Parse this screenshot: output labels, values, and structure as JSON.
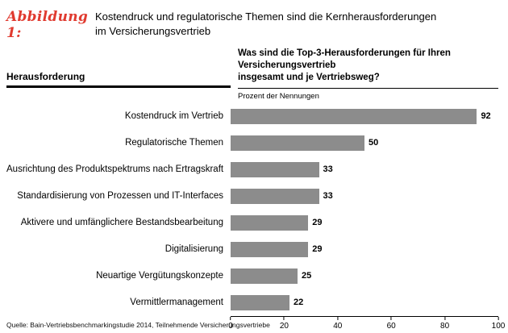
{
  "figure": {
    "label": "Abbildung 1:",
    "title_line1": "Kostendruck und regulatorische Themen sind die Kernherausforderungen",
    "title_line2": "im Versicherungsvertrieb"
  },
  "columns": {
    "left_header": "Herausforderung",
    "question_line1": "Was sind die Top-3-Herausforderungen für Ihren Versicherungsvertrieb",
    "question_line2": "insgesamt und je Vertriebsweg?",
    "unit_label": "Prozent der Nennungen"
  },
  "chart_data": {
    "type": "bar",
    "orientation": "horizontal",
    "title": "Was sind die Top-3-Herausforderungen für Ihren Versicherungsvertrieb insgesamt und je Vertriebsweg?",
    "xlabel": "Prozent der Nennungen",
    "categories": [
      "Kostendruck im Vertrieb",
      "Regulatorische Themen",
      "Ausrichtung des Produktspektrums nach Ertragskraft",
      "Standardisierung von Prozessen und IT-Interfaces",
      "Aktivere und umfänglichere Bestandsbearbeitung",
      "Digitalisierung",
      "Neuartige Vergütungskonzepte",
      "Vermittlermanagement"
    ],
    "values": [
      92,
      50,
      33,
      33,
      29,
      29,
      25,
      22
    ],
    "xlim": [
      0,
      100
    ],
    "x_ticks": [
      0,
      20,
      40,
      60,
      80,
      100
    ],
    "grid": false,
    "legend": false
  },
  "footer": {
    "source": "Quelle: Bain-Vertriebsbenchmarkingstudie 2014, Teilnehmende Versicherungsvertriebe"
  },
  "colors": {
    "accent_red": "#e03a2f",
    "bar_gray": "#8c8c8c"
  }
}
